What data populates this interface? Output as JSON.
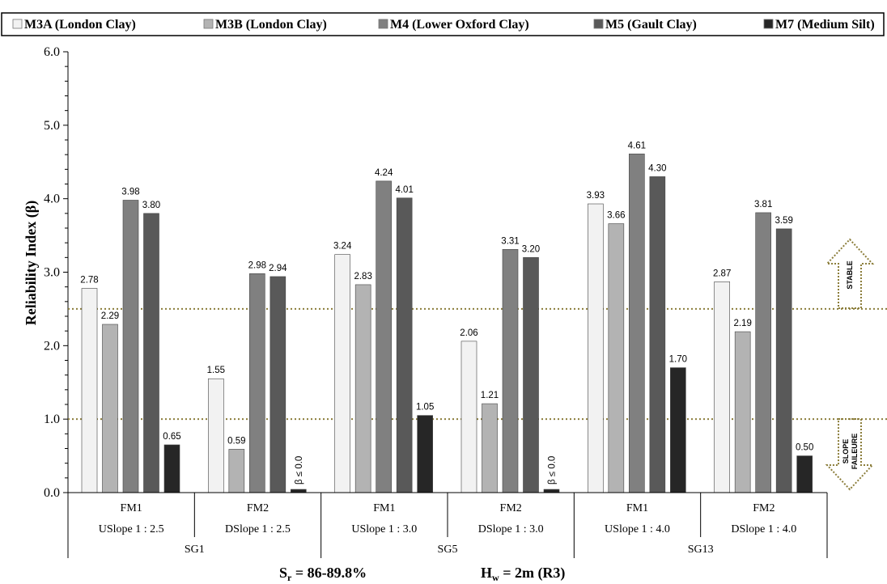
{
  "chart_data": {
    "type": "bar",
    "title": "",
    "ylabel": "Reliability Index (β)",
    "ylim": [
      0,
      6
    ],
    "yticks": [
      "0.0",
      "1.0",
      "2.0",
      "3.0",
      "4.0",
      "5.0",
      "6.0"
    ],
    "legend_position": "top",
    "categories": [
      {
        "fm": "FM1",
        "slope": "USlope 1 : 2.5",
        "group": "SG1"
      },
      {
        "fm": "FM2",
        "slope": "DSlope 1 : 2.5",
        "group": "SG1"
      },
      {
        "fm": "FM1",
        "slope": "USlope 1 : 3.0",
        "group": "SG5"
      },
      {
        "fm": "FM2",
        "slope": "DSlope 1 : 3.0",
        "group": "SG5"
      },
      {
        "fm": "FM1",
        "slope": "USlope 1 : 4.0",
        "group": "SG13"
      },
      {
        "fm": "FM2",
        "slope": "DSlope 1 : 4.0",
        "group": "SG13"
      }
    ],
    "groups": [
      "SG1",
      "SG5",
      "SG13"
    ],
    "series": [
      {
        "name": "M3A (London Clay)",
        "color": "#f2f2f2",
        "values": [
          2.78,
          1.55,
          3.24,
          2.06,
          3.93,
          2.87
        ],
        "labels": [
          "2.78",
          "1.55",
          "3.24",
          "2.06",
          "3.93",
          "2.87"
        ]
      },
      {
        "name": "M3B (London Clay)",
        "color": "#b3b3b3",
        "values": [
          2.29,
          0.59,
          2.83,
          1.21,
          3.66,
          2.19
        ],
        "labels": [
          "2.29",
          "0.59",
          "2.83",
          "1.21",
          "3.66",
          "2.19"
        ]
      },
      {
        "name": "M4 (Lower Oxford Clay)",
        "color": "#808080",
        "values": [
          3.98,
          2.98,
          4.24,
          3.31,
          4.61,
          3.81
        ],
        "labels": [
          "3.98",
          "2.98",
          "4.24",
          "3.31",
          "4.61",
          "3.81"
        ]
      },
      {
        "name": "M5 (Gault Clay)",
        "color": "#595959",
        "values": [
          3.8,
          2.94,
          4.01,
          3.2,
          4.3,
          3.59
        ],
        "labels": [
          "3.80",
          "2.94",
          "4.01",
          "3.20",
          "4.30",
          "3.59"
        ]
      },
      {
        "name": "M7 (Medium Silt)",
        "color": "#262626",
        "values": [
          0.65,
          0.0,
          1.05,
          0.0,
          1.7,
          0.5
        ],
        "labels": [
          "0.65",
          "β ≤ 0.0",
          "1.05",
          "β ≤ 0.0",
          "1.70",
          "0.50"
        ]
      }
    ],
    "threshold_lines": [
      2.5,
      1.0
    ],
    "threshold_color": "#8b7d3a",
    "annotations": {
      "stable": "STABLE",
      "failure_line1": "SLOPE",
      "failure_line2": "FAILEURE"
    }
  },
  "footer": {
    "sr_main": "S",
    "sr_sub": "r",
    "sr_value": " = 86-89.8%",
    "hw_main": "H",
    "hw_sub": "w",
    "hw_value": " = 2m (R3)"
  }
}
